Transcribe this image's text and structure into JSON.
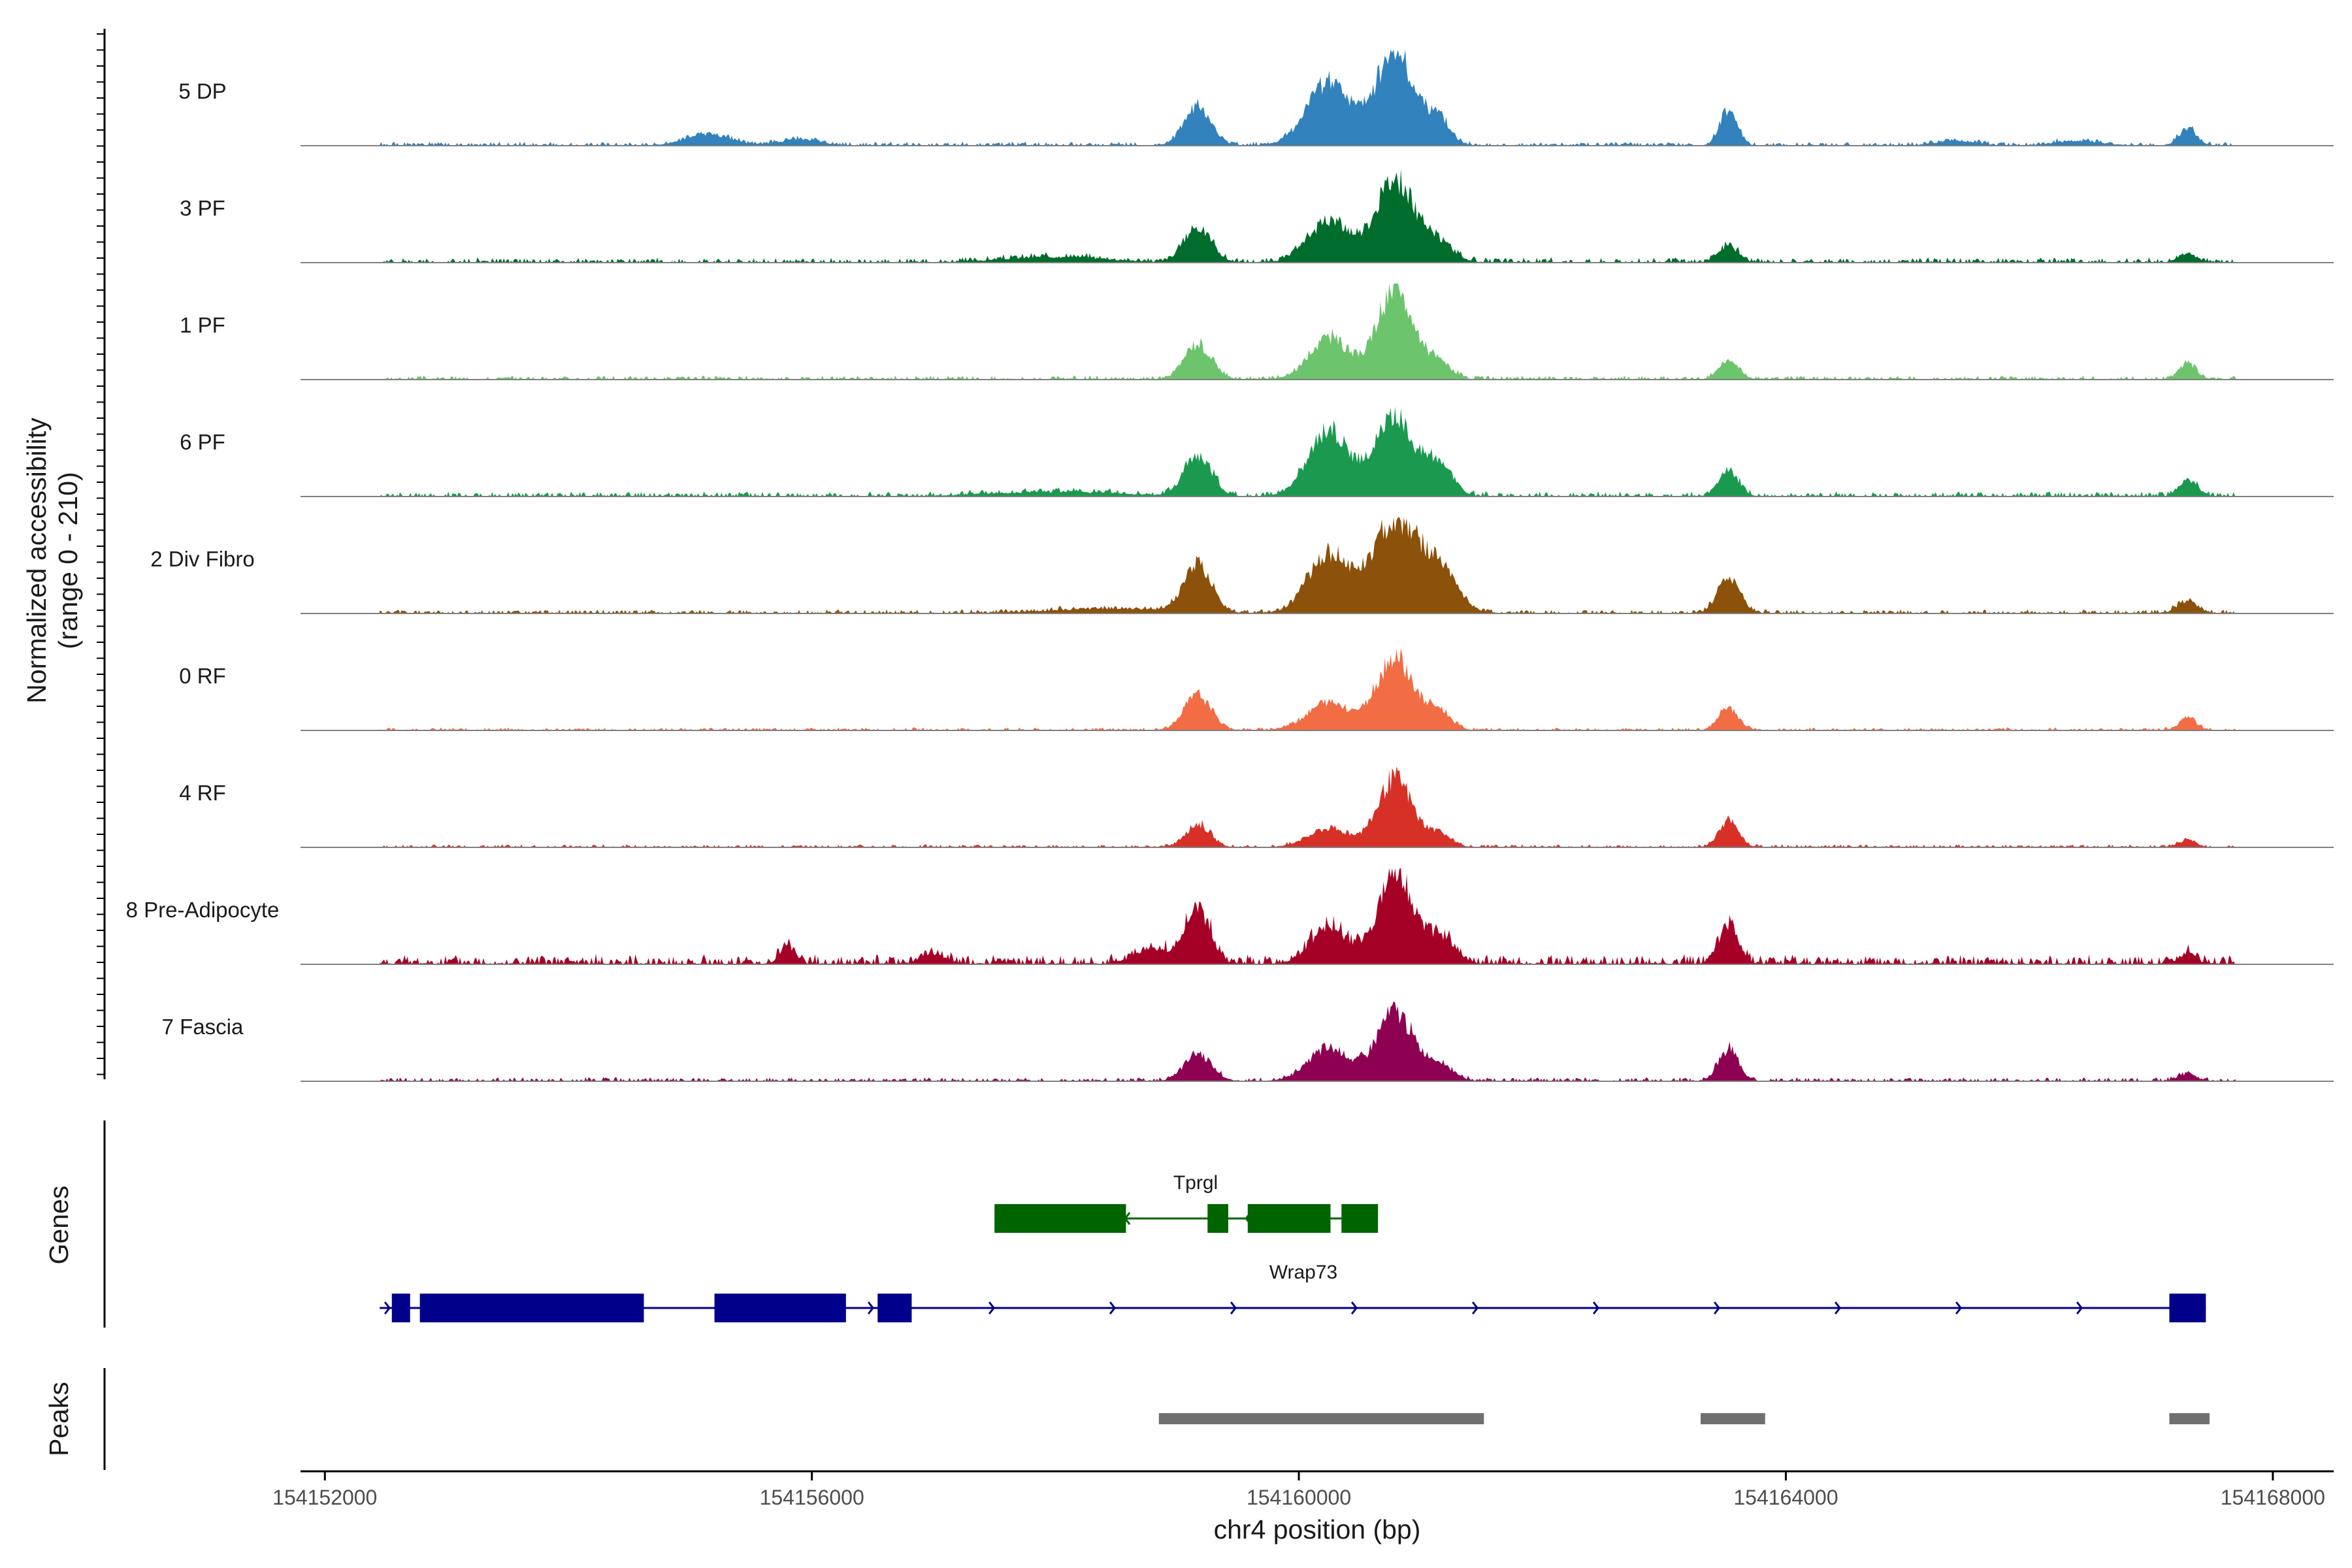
{
  "chart_data": {
    "type": "area",
    "title": "",
    "xlabel": "chr4 position (bp)",
    "ylabel": "Normalized accessibility",
    "ylabel_range": "(range 0 - 210)",
    "ylim": [
      0,
      210
    ],
    "xlim": [
      154151800,
      154168500
    ],
    "x_ticks": [
      154152000,
      154156000,
      154160000,
      154164000,
      154168000
    ],
    "x_tick_labels": [
      "154152000",
      "154156000",
      "154160000",
      "154164000",
      "154168000"
    ],
    "tracks": [
      {
        "name": "5 DP",
        "color": "#3182bd",
        "noise": 0.04,
        "seed": 1,
        "peaks": [
          [
            154159170,
            0.42,
            110
          ],
          [
            154160250,
            0.7,
            180
          ],
          [
            154160790,
            1.0,
            160
          ],
          [
            154161150,
            0.28,
            90
          ],
          [
            154163530,
            0.38,
            70
          ],
          [
            154167300,
            0.18,
            70
          ],
          [
            154155150,
            0.12,
            180
          ],
          [
            154155900,
            0.07,
            150
          ],
          [
            154166400,
            0.05,
            180
          ],
          [
            154165400,
            0.05,
            150
          ]
        ]
      },
      {
        "name": "3 PF",
        "color": "#006d2c",
        "noise": 0.05,
        "seed": 2,
        "peaks": [
          [
            154159170,
            0.38,
            110
          ],
          [
            154160250,
            0.45,
            170
          ],
          [
            154160790,
            0.9,
            160
          ],
          [
            154161150,
            0.2,
            120
          ],
          [
            154163530,
            0.18,
            80
          ],
          [
            154167300,
            0.1,
            70
          ],
          [
            154158000,
            0.06,
            400
          ]
        ]
      },
      {
        "name": "1 PF",
        "color": "#6cc46c",
        "noise": 0.04,
        "seed": 3,
        "peaks": [
          [
            154159170,
            0.38,
            110
          ],
          [
            154160250,
            0.45,
            160
          ],
          [
            154160790,
            0.95,
            150
          ],
          [
            154161150,
            0.18,
            100
          ],
          [
            154163530,
            0.2,
            80
          ],
          [
            154167300,
            0.17,
            70
          ]
        ]
      },
      {
        "name": "6 PF",
        "color": "#1b9a4f",
        "noise": 0.05,
        "seed": 4,
        "peaks": [
          [
            154159170,
            0.46,
            110
          ],
          [
            154160250,
            0.72,
            170
          ],
          [
            154160790,
            0.85,
            160
          ],
          [
            154161150,
            0.35,
            110
          ],
          [
            154163530,
            0.28,
            80
          ],
          [
            154167300,
            0.18,
            70
          ],
          [
            154158000,
            0.05,
            500
          ]
        ]
      },
      {
        "name": "2 Div Fibro",
        "color": "#8c510a",
        "noise": 0.04,
        "seed": 5,
        "peaks": [
          [
            154159170,
            0.52,
            110
          ],
          [
            154160250,
            0.66,
            170
          ],
          [
            154160790,
            1.0,
            180
          ],
          [
            154161150,
            0.45,
            150
          ],
          [
            154163530,
            0.38,
            90
          ],
          [
            154167300,
            0.14,
            80
          ],
          [
            154158500,
            0.05,
            500
          ]
        ]
      },
      {
        "name": "0 RF",
        "color": "#f26d43",
        "noise": 0.03,
        "seed": 6,
        "peaks": [
          [
            154159170,
            0.38,
            110
          ],
          [
            154160250,
            0.3,
            180
          ],
          [
            154160790,
            0.8,
            150
          ],
          [
            154161150,
            0.2,
            100
          ],
          [
            154163530,
            0.24,
            80
          ],
          [
            154167300,
            0.13,
            70
          ]
        ]
      },
      {
        "name": "4 RF",
        "color": "#d73027",
        "noise": 0.03,
        "seed": 7,
        "peaks": [
          [
            154159170,
            0.25,
            100
          ],
          [
            154160250,
            0.2,
            170
          ],
          [
            154160790,
            0.75,
            140
          ],
          [
            154161150,
            0.15,
            100
          ],
          [
            154163530,
            0.28,
            80
          ],
          [
            154167300,
            0.08,
            70
          ]
        ]
      },
      {
        "name": "8 Pre-Adipocyte",
        "color": "#a50026",
        "noise": 0.1,
        "seed": 8,
        "peaks": [
          [
            154159170,
            0.6,
            100
          ],
          [
            154160250,
            0.4,
            150
          ],
          [
            154160790,
            1.0,
            140
          ],
          [
            154161150,
            0.3,
            120
          ],
          [
            154163530,
            0.42,
            80
          ],
          [
            154167300,
            0.12,
            60
          ],
          [
            154155800,
            0.2,
            60
          ],
          [
            154157000,
            0.1,
            100
          ],
          [
            154158800,
            0.15,
            150
          ]
        ]
      },
      {
        "name": "7 Fascia",
        "color": "#8e0152",
        "noise": 0.04,
        "seed": 9,
        "peaks": [
          [
            154159170,
            0.3,
            110
          ],
          [
            154160250,
            0.35,
            170
          ],
          [
            154160790,
            0.75,
            150
          ],
          [
            154161150,
            0.18,
            110
          ],
          [
            154163530,
            0.35,
            80
          ],
          [
            154167300,
            0.08,
            70
          ]
        ]
      }
    ],
    "genes_label": "Genes",
    "genes": [
      {
        "name": "Tprgl",
        "color": "#006400",
        "strand": "-",
        "start": 154157500,
        "end": 154160650,
        "exons": [
          [
            154157500,
            154158580
          ],
          [
            154159250,
            154159420
          ],
          [
            154159580,
            154160260
          ],
          [
            154160350,
            154160650
          ]
        ]
      },
      {
        "name": "Wrap73",
        "color": "#00008b",
        "strand": "+",
        "start": 154152450,
        "end": 154167450,
        "exons": [
          [
            154152550,
            154152700
          ],
          [
            154152780,
            154154620
          ],
          [
            154155200,
            154156280
          ],
          [
            154156540,
            154156820
          ],
          [
            154167150,
            154167450
          ]
        ]
      }
    ],
    "peaks_label": "Peaks",
    "peaks_color": "#707070",
    "peak_regions": [
      [
        154158850,
        154161520
      ],
      [
        154163300,
        154163830
      ],
      [
        154167150,
        154167480
      ]
    ]
  }
}
